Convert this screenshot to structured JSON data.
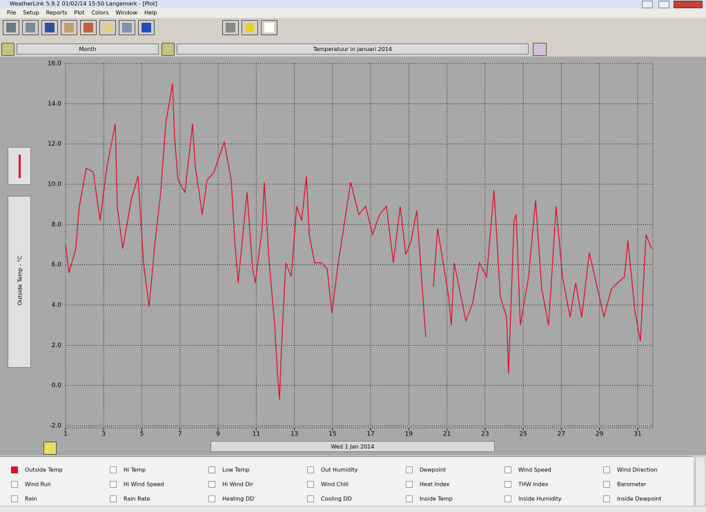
{
  "window": {
    "title": "WeatherLink 5.9.2  01/02/14  15:50  Langemark - [Plot]",
    "menu": [
      "File",
      "Setup",
      "Reports",
      "Plot",
      "Colors",
      "Window",
      "Help"
    ],
    "period": "Month"
  },
  "chart_data": {
    "type": "line",
    "title": "Temperatuur in januari 2014",
    "ylabel": "Outside Temp - °C",
    "xlabel": "Wed 1 Jan 2014",
    "x": [
      1.0,
      1.18,
      1.54,
      1.72,
      2.09,
      2.45,
      2.81,
      3.17,
      3.61,
      3.71,
      4.0,
      4.44,
      4.8,
      5.09,
      5.38,
      5.7,
      5.99,
      6.25,
      6.61,
      6.72,
      6.9,
      7.26,
      7.66,
      7.8,
      8.17,
      8.42,
      8.78,
      9.32,
      9.69,
      9.87,
      10.05,
      10.52,
      10.81,
      10.95,
      11.31,
      11.42,
      11.68,
      11.97,
      12.11,
      12.22,
      12.33,
      12.55,
      12.83,
      13.12,
      13.38,
      13.63,
      13.78,
      14.06,
      14.39,
      14.72,
      14.97,
      15.3,
      15.58,
      15.95,
      16.38,
      16.74,
      17.1,
      17.47,
      17.83,
      18.19,
      18.55,
      18.84,
      19.13,
      19.42,
      19.71,
      19.89,
      20.0,
      20.29,
      20.51,
      20.8,
      21.09,
      21.23,
      21.38,
      21.66,
      21.99,
      22.35,
      22.71,
      23.08,
      23.47,
      23.8,
      24.13,
      24.23,
      24.52,
      24.63,
      24.85,
      25.28,
      25.65,
      25.97,
      26.33,
      26.73,
      27.06,
      27.46,
      27.75,
      28.07,
      28.47,
      28.9,
      29.23,
      29.63,
      29.95,
      30.31,
      30.49,
      30.86,
      31.15,
      31.44,
      31.73
    ],
    "series": [
      {
        "name": "Outside Temp",
        "color": "#e0102c",
        "values": [
          7.0,
          5.6,
          6.8,
          8.9,
          10.8,
          10.6,
          8.2,
          10.9,
          13.0,
          8.9,
          6.8,
          9.2,
          10.4,
          6.1,
          3.9,
          7.2,
          9.6,
          13.0,
          15.0,
          12.3,
          10.2,
          9.6,
          13.0,
          10.9,
          8.5,
          10.2,
          10.6,
          12.1,
          10.2,
          7.2,
          5.1,
          9.6,
          5.8,
          5.1,
          7.8,
          10.1,
          6.1,
          3.0,
          0.6,
          -0.7,
          2.0,
          6.1,
          5.4,
          8.9,
          8.2,
          10.4,
          7.5,
          6.1,
          6.1,
          5.8,
          3.6,
          6.1,
          7.8,
          10.1,
          8.5,
          8.9,
          7.5,
          8.5,
          8.9,
          6.1,
          8.9,
          6.5,
          7.2,
          8.7,
          4.8,
          2.4,
          null,
          4.9,
          7.8,
          6.1,
          4.4,
          3.0,
          6.1,
          4.8,
          3.2,
          4.1,
          6.1,
          5.4,
          9.7,
          4.4,
          3.4,
          0.6,
          8.2,
          8.5,
          3.0,
          5.4,
          9.2,
          4.8,
          3.0,
          8.9,
          5.4,
          3.4,
          5.1,
          3.4,
          6.6,
          4.8,
          3.4,
          4.8,
          5.1,
          5.4,
          7.2,
          3.7,
          2.2,
          7.5,
          6.8
        ]
      }
    ],
    "xlim": [
      1,
      31.8
    ],
    "xticks": [
      1,
      3,
      5,
      7,
      9,
      11,
      13,
      15,
      17,
      19,
      21,
      23,
      25,
      27,
      29,
      31
    ],
    "ylim": [
      -2,
      16
    ],
    "yticks": [
      {
        "value": -2,
        "label": "-2.0"
      },
      {
        "value": 0,
        "label": "0.0"
      },
      {
        "value": 2,
        "label": "2.0"
      },
      {
        "value": 4,
        "label": "4.0"
      },
      {
        "value": 6,
        "label": "6.0"
      },
      {
        "value": 8,
        "label": "8.0"
      },
      {
        "value": 10,
        "label": "10.0"
      },
      {
        "value": 12,
        "label": "12.0"
      },
      {
        "value": 14,
        "label": "14.0"
      },
      {
        "value": 16,
        "label": "16.0"
      }
    ],
    "grid": true
  },
  "parameters": [
    "Hi Temp",
    "Low Temp",
    "Out Humidity",
    "Dewpoint",
    "Wind Speed",
    "Wind Direction",
    "Wind Run",
    "Hi Wind Speed",
    "Hi Wind Dir",
    "Wind Chill",
    "Heat Index",
    "THW Index",
    "Barometer",
    "Rain",
    "Rain Rate",
    "Heating DD",
    "Cooling DD",
    "Inside Temp",
    "Inside Humidity",
    "Inside Dewpoint"
  ]
}
